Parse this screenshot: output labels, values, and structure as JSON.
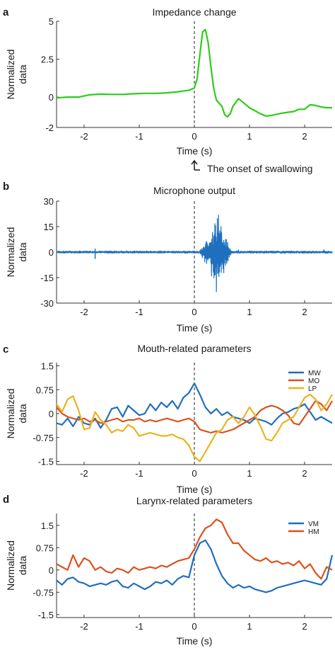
{
  "figure": {
    "annotation_text": "The onset of swallowing",
    "onset_marker_x": 0
  },
  "chart_data": [
    {
      "letter": "a",
      "type": "line",
      "title": "Impedance change",
      "xlabel": "Time (s)",
      "ylabel_lines": [
        "Normalized",
        "data"
      ],
      "xlim": [
        -2.5,
        2.5
      ],
      "ylim": [
        -2,
        5
      ],
      "xticks": [
        -2,
        -1,
        0,
        1,
        2
      ],
      "xtick_labels": [
        "-2",
        "-1",
        "0",
        "1",
        "2"
      ],
      "yticks": [
        5,
        2.5,
        0,
        -2
      ],
      "ytick_labels": [
        "5",
        "2.5",
        "0",
        "-2"
      ],
      "grid": false,
      "legend": null,
      "series": [
        {
          "color": "#2ecc1a",
          "x": [
            -2.5,
            -2.3,
            -2.1,
            -1.9,
            -1.7,
            -1.5,
            -1.3,
            -1.1,
            -0.9,
            -0.7,
            -0.5,
            -0.3,
            -0.1,
            0.0,
            0.05,
            0.1,
            0.15,
            0.2,
            0.25,
            0.3,
            0.35,
            0.4,
            0.5,
            0.55,
            0.6,
            0.65,
            0.7,
            0.8,
            0.9,
            1.0,
            1.1,
            1.2,
            1.3,
            1.4,
            1.6,
            1.8,
            1.9,
            2.0,
            2.1,
            2.2,
            2.3,
            2.4,
            2.5
          ],
          "values": [
            -0.05,
            0.0,
            0.0,
            0.15,
            0.2,
            0.18,
            0.18,
            0.22,
            0.25,
            0.25,
            0.28,
            0.35,
            0.45,
            0.6,
            1.2,
            2.8,
            4.3,
            4.45,
            3.6,
            2.0,
            0.6,
            -0.2,
            -0.6,
            -1.15,
            -1.3,
            -1.1,
            -0.6,
            -0.1,
            -0.4,
            -0.7,
            -0.9,
            -1.1,
            -1.25,
            -1.2,
            -1.05,
            -0.95,
            -0.8,
            -0.8,
            -0.5,
            -0.55,
            -0.65,
            -0.7,
            -0.7
          ]
        }
      ]
    },
    {
      "letter": "b",
      "type": "line",
      "title": "Microphone output",
      "xlabel": "Time (s)",
      "ylabel_lines": [
        "Normalized",
        "data"
      ],
      "xlim": [
        -2.5,
        2.5
      ],
      "ylim": [
        -30,
        30
      ],
      "xticks": [
        -2,
        -1,
        0,
        1,
        2
      ],
      "xtick_labels": [
        "-2",
        "-1",
        "0",
        "1",
        "2"
      ],
      "yticks": [
        30,
        15,
        0,
        -15,
        -30
      ],
      "ytick_labels": [
        "30",
        "15",
        "0",
        "-15",
        "-30"
      ],
      "grid": false,
      "legend": null,
      "series": [
        {
          "color": "#1f6fbf",
          "burst": {
            "start": 0.05,
            "end": 0.7,
            "peak": 0.45,
            "peak_amplitude": 29
          },
          "baseline_amplitude": 0.8,
          "spikes": [
            {
              "x": -1.8,
              "value": -4
            },
            {
              "x": -1.8,
              "value": 2
            },
            {
              "x": 0.8,
              "value": 1.5
            },
            {
              "x": 2.35,
              "value": 1.5
            }
          ]
        }
      ]
    },
    {
      "letter": "c",
      "type": "line",
      "title": "Mouth-related parameters",
      "xlabel": "Time (s)",
      "ylabel_lines": [
        "Normalized",
        "data"
      ],
      "xlim": [
        -2.5,
        2.5
      ],
      "ylim": [
        -1.6,
        1.6
      ],
      "xticks": [
        -2,
        -1,
        0,
        1,
        2
      ],
      "xtick_labels": [
        "-2",
        "-1",
        "0",
        "1",
        "2"
      ],
      "yticks": [
        1.5,
        0.75,
        0,
        -0.75,
        -1.5
      ],
      "ytick_labels": [
        "1.5",
        "0.75",
        "0",
        "-0.75",
        "-1.5"
      ],
      "grid": false,
      "legend": {
        "position": "top-right"
      },
      "series": [
        {
          "name": "MW",
          "color": "#1f6fbf",
          "x": [
            -2.5,
            -2.4,
            -2.3,
            -2.2,
            -2.1,
            -2.0,
            -1.9,
            -1.8,
            -1.7,
            -1.6,
            -1.5,
            -1.4,
            -1.3,
            -1.2,
            -1.1,
            -1.0,
            -0.9,
            -0.8,
            -0.7,
            -0.6,
            -0.5,
            -0.4,
            -0.3,
            -0.2,
            -0.1,
            0.0,
            0.1,
            0.2,
            0.3,
            0.4,
            0.5,
            0.6,
            0.7,
            0.8,
            0.9,
            1.0,
            1.1,
            1.2,
            1.3,
            1.4,
            1.5,
            1.6,
            1.7,
            1.8,
            1.9,
            2.0,
            2.1,
            2.2,
            2.3,
            2.4,
            2.5
          ],
          "values": [
            -0.3,
            -0.35,
            -0.15,
            -0.4,
            -0.1,
            -0.3,
            -0.35,
            -0.15,
            -0.45,
            -0.2,
            0.15,
            0.2,
            -0.1,
            0.25,
            0.1,
            -0.05,
            0.0,
            0.3,
            0.1,
            0.35,
            0.2,
            0.4,
            0.15,
            0.5,
            0.65,
            0.95,
            0.6,
            0.2,
            0.0,
            0.15,
            -0.05,
            0.05,
            -0.1,
            -0.15,
            -0.2,
            -0.3,
            -0.15,
            -0.2,
            -0.25,
            -0.35,
            -0.15,
            0.0,
            0.05,
            0.15,
            0.2,
            0.3,
            0.05,
            -0.2,
            -0.1,
            -0.2,
            -0.3
          ]
        },
        {
          "name": "MO",
          "color": "#d9531e",
          "x": [
            -2.5,
            -2.4,
            -2.3,
            -2.2,
            -2.1,
            -2.0,
            -1.9,
            -1.8,
            -1.7,
            -1.6,
            -1.5,
            -1.4,
            -1.3,
            -1.2,
            -1.1,
            -1.0,
            -0.9,
            -0.8,
            -0.7,
            -0.6,
            -0.5,
            -0.4,
            -0.3,
            -0.2,
            -0.1,
            0.0,
            0.1,
            0.2,
            0.3,
            0.4,
            0.5,
            0.6,
            0.7,
            0.8,
            0.9,
            1.0,
            1.1,
            1.2,
            1.3,
            1.4,
            1.5,
            1.6,
            1.7,
            1.8,
            1.9,
            2.0,
            2.1,
            2.2,
            2.3,
            2.4,
            2.5
          ],
          "values": [
            0.2,
            0.0,
            -0.1,
            -0.15,
            -0.2,
            -0.15,
            -0.25,
            -0.2,
            -0.3,
            -0.25,
            -0.2,
            -0.15,
            -0.25,
            -0.2,
            -0.2,
            -0.15,
            -0.25,
            -0.2,
            -0.25,
            -0.2,
            -0.15,
            -0.2,
            -0.25,
            -0.2,
            -0.15,
            -0.25,
            -0.5,
            -0.55,
            -0.6,
            -0.55,
            -0.6,
            -0.55,
            -0.5,
            -0.4,
            -0.3,
            -0.2,
            -0.1,
            0.1,
            0.2,
            0.25,
            0.2,
            0.1,
            -0.05,
            -0.3,
            -0.35,
            -0.1,
            0.15,
            0.4,
            0.3,
            0.1,
            0.4
          ]
        },
        {
          "name": "LP",
          "color": "#edb120",
          "x": [
            -2.5,
            -2.4,
            -2.3,
            -2.2,
            -2.1,
            -2.0,
            -1.9,
            -1.8,
            -1.7,
            -1.6,
            -1.5,
            -1.4,
            -1.3,
            -1.2,
            -1.1,
            -1.0,
            -0.9,
            -0.8,
            -0.7,
            -0.6,
            -0.5,
            -0.4,
            -0.3,
            -0.2,
            -0.1,
            0.0,
            0.1,
            0.2,
            0.3,
            0.4,
            0.5,
            0.6,
            0.7,
            0.8,
            0.9,
            1.0,
            1.1,
            1.2,
            1.3,
            1.4,
            1.5,
            1.6,
            1.7,
            1.8,
            1.9,
            2.0,
            2.1,
            2.2,
            2.3,
            2.4,
            2.5
          ],
          "values": [
            0.3,
            0.05,
            0.45,
            0.55,
            0.1,
            -0.5,
            -0.45,
            0.05,
            -0.2,
            -0.35,
            -0.6,
            -0.5,
            -0.55,
            -0.35,
            -0.45,
            -0.7,
            -0.65,
            -0.6,
            -0.65,
            -0.7,
            -0.7,
            -0.65,
            -0.75,
            -0.8,
            -1.0,
            -1.35,
            -1.5,
            -1.2,
            -0.9,
            -0.6,
            -0.5,
            -0.2,
            -0.1,
            -0.3,
            -0.1,
            0.2,
            -0.05,
            -0.4,
            -0.8,
            -0.85,
            -0.6,
            -0.3,
            -0.2,
            -0.1,
            0.2,
            0.5,
            0.6,
            0.45,
            0.1,
            0.3,
            0.6
          ]
        }
      ]
    },
    {
      "letter": "d",
      "type": "line",
      "title": "Larynx-related parameters",
      "xlabel": "Time (s)",
      "ylabel_lines": [
        "Normalized",
        "data"
      ],
      "xlim": [
        -2.5,
        2.5
      ],
      "ylim": [
        -1.6,
        1.9
      ],
      "xticks": [
        -2,
        -1,
        0,
        1,
        2
      ],
      "xtick_labels": [
        "-2",
        "-1",
        "0",
        "1",
        "2"
      ],
      "yticks": [
        1.5,
        0.75,
        0,
        -0.75,
        -1.5
      ],
      "ytick_labels": [
        "1.5",
        "0.75",
        "0",
        "-0.75",
        "-1.5"
      ],
      "grid": false,
      "legend": {
        "position": "top-right"
      },
      "series": [
        {
          "name": "VM",
          "color": "#1f6fbf",
          "x": [
            -2.5,
            -2.4,
            -2.3,
            -2.2,
            -2.1,
            -2.0,
            -1.9,
            -1.8,
            -1.7,
            -1.6,
            -1.5,
            -1.4,
            -1.3,
            -1.2,
            -1.1,
            -1.0,
            -0.9,
            -0.8,
            -0.7,
            -0.6,
            -0.5,
            -0.4,
            -0.3,
            -0.2,
            -0.1,
            0.0,
            0.1,
            0.2,
            0.3,
            0.4,
            0.5,
            0.6,
            0.7,
            0.8,
            0.9,
            1.0,
            1.1,
            1.2,
            1.3,
            1.4,
            1.5,
            1.6,
            1.7,
            1.8,
            1.9,
            2.0,
            2.1,
            2.2,
            2.3,
            2.4,
            2.5
          ],
          "values": [
            -0.35,
            -0.5,
            -0.3,
            -0.25,
            -0.4,
            -0.45,
            -0.55,
            -0.5,
            -0.45,
            -0.5,
            -0.4,
            -0.35,
            -0.55,
            -0.6,
            -0.45,
            -0.55,
            -0.65,
            -0.55,
            -0.4,
            -0.45,
            -0.35,
            -0.5,
            -0.3,
            -0.2,
            -0.25,
            0.5,
            0.9,
            1.0,
            0.7,
            0.2,
            -0.2,
            -0.45,
            -0.6,
            -0.5,
            -0.6,
            -0.55,
            -0.65,
            -0.7,
            -0.75,
            -0.7,
            -0.6,
            -0.55,
            -0.5,
            -0.45,
            -0.4,
            -0.35,
            -0.4,
            -0.45,
            -0.5,
            -0.3,
            0.5
          ]
        },
        {
          "name": "HM",
          "color": "#d9531e",
          "x": [
            -2.5,
            -2.4,
            -2.3,
            -2.2,
            -2.1,
            -2.0,
            -1.9,
            -1.8,
            -1.7,
            -1.6,
            -1.5,
            -1.4,
            -1.3,
            -1.2,
            -1.1,
            -1.0,
            -0.9,
            -0.8,
            -0.7,
            -0.6,
            -0.5,
            -0.4,
            -0.3,
            -0.2,
            -0.1,
            0.0,
            0.1,
            0.2,
            0.3,
            0.4,
            0.5,
            0.6,
            0.7,
            0.8,
            0.9,
            1.0,
            1.1,
            1.2,
            1.3,
            1.4,
            1.5,
            1.6,
            1.7,
            1.8,
            1.9,
            2.0,
            2.1,
            2.2,
            2.3,
            2.4,
            2.5
          ],
          "values": [
            0.2,
            0.1,
            0.0,
            0.5,
            0.1,
            0.4,
            0.3,
            0.0,
            0.1,
            -0.05,
            -0.1,
            0.05,
            0.0,
            -0.1,
            0.1,
            0.0,
            0.05,
            0.1,
            0.05,
            0.15,
            0.1,
            0.2,
            0.3,
            0.35,
            0.4,
            0.7,
            1.1,
            1.4,
            1.5,
            1.7,
            1.6,
            1.2,
            0.9,
            0.9,
            0.65,
            0.5,
            0.35,
            0.3,
            0.4,
            0.25,
            0.3,
            0.2,
            0.25,
            0.15,
            0.3,
            0.05,
            0.2,
            -0.1,
            -0.3,
            0.1,
            0.0
          ]
        }
      ]
    }
  ]
}
